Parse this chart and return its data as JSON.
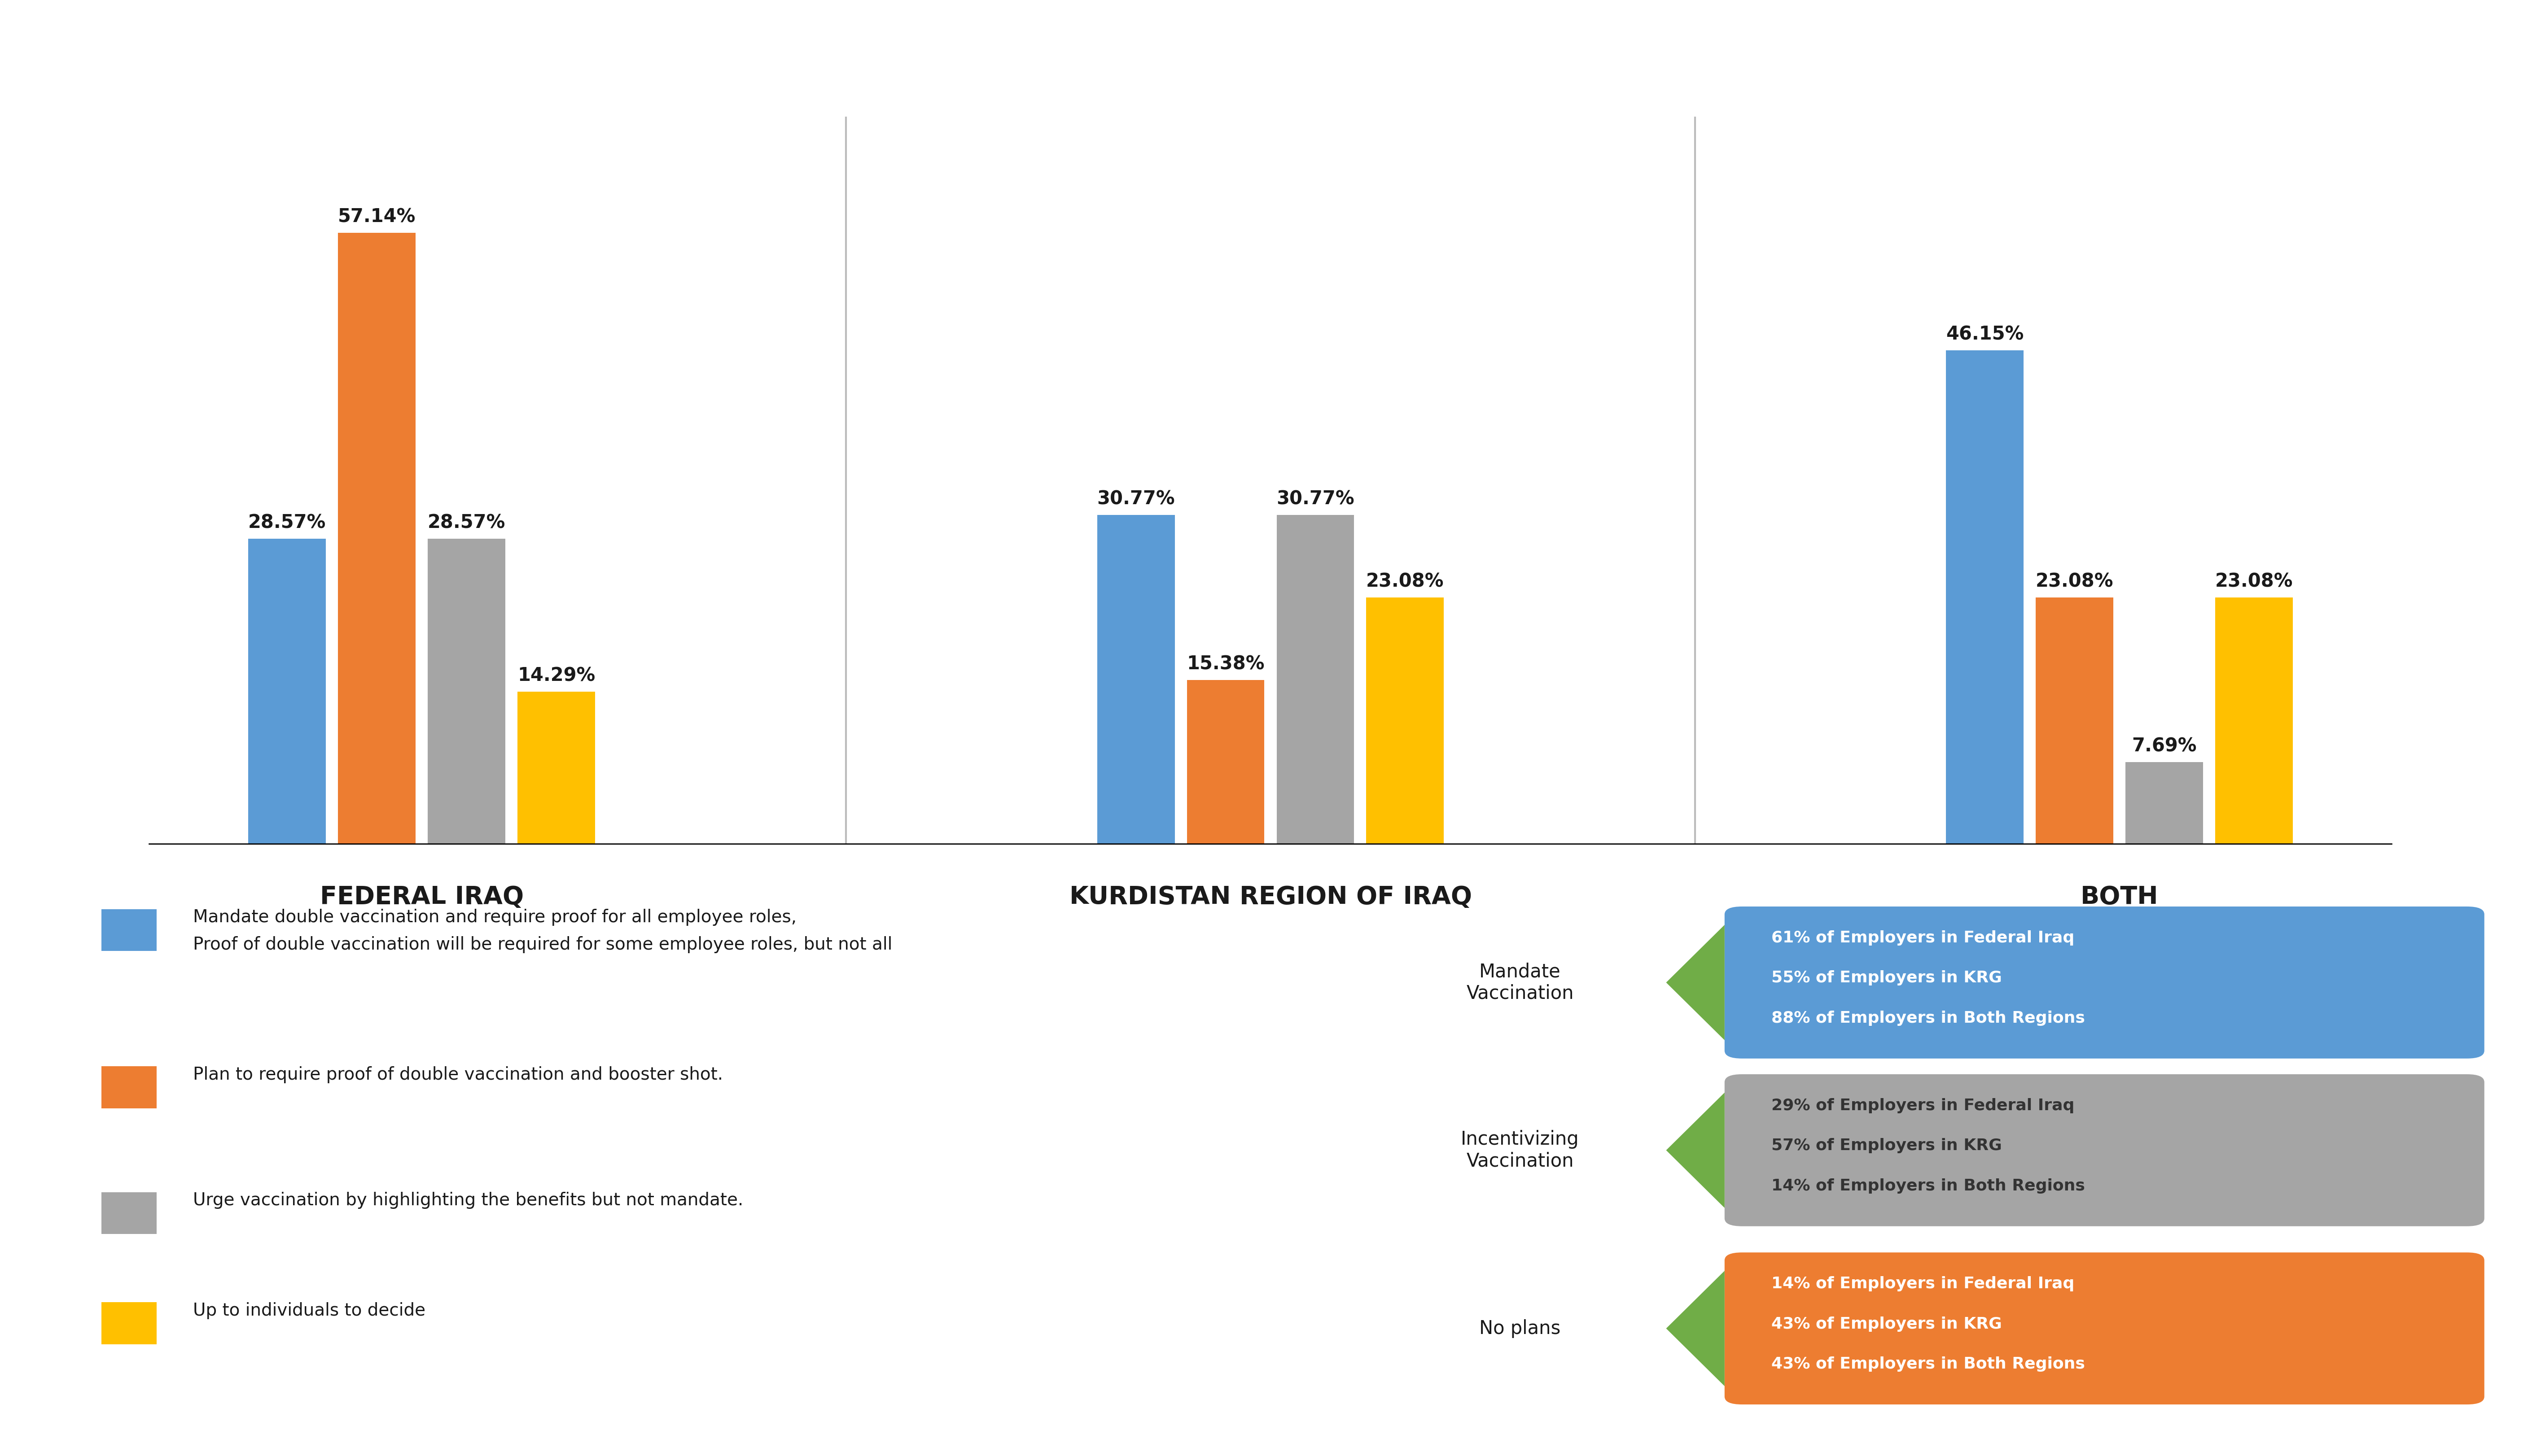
{
  "groups": [
    "FEDERAL IRAQ",
    "KURDISTAN REGION OF IRAQ",
    "BOTH"
  ],
  "colors": [
    "#5B9BD5",
    "#ED7D31",
    "#A5A5A5",
    "#FFC000"
  ],
  "values": {
    "FEDERAL IRAQ": [
      28.57,
      57.14,
      28.57,
      14.29
    ],
    "KURDISTAN REGION OF IRAQ": [
      30.77,
      15.38,
      30.77,
      23.08
    ],
    "BOTH": [
      46.15,
      23.08,
      7.69,
      23.08
    ]
  },
  "bar_labels": {
    "FEDERAL IRAQ": [
      "28.57%",
      "57.14%",
      "28.57%",
      "14.29%"
    ],
    "KURDISTAN REGION OF IRAQ": [
      "30.77%",
      "15.38%",
      "30.77%",
      "23.08%"
    ],
    "BOTH": [
      "46.15%",
      "23.08%",
      "7.69%",
      "23.08%"
    ]
  },
  "legend_items": [
    {
      "color": "#5B9BD5",
      "text1": "Mandate double vaccination and require proof for all employee roles,",
      "text2": "Proof of double vaccination will be required for some employee roles, but not all"
    },
    {
      "color": "#ED7D31",
      "text1": "Plan to require proof of double vaccination and booster shot.",
      "text2": ""
    },
    {
      "color": "#A5A5A5",
      "text1": "Urge vaccination by highlighting the benefits but not mandate.",
      "text2": ""
    },
    {
      "color": "#FFC000",
      "text1": "Up to individuals to decide",
      "text2": ""
    }
  ],
  "annotation_labels": [
    "Mandate\nVaccination",
    "Incentivizing\nVaccination",
    "No plans"
  ],
  "annotation_colors": [
    "#5B9BD5",
    "#A5A5A5",
    "#ED7D31"
  ],
  "annotation_text_colors": [
    "white",
    "#333333",
    "white"
  ],
  "annotation_texts": [
    [
      "61% of Employers in Federal Iraq",
      "55% of Employers in KRG",
      "88% of Employers in Both Regions"
    ],
    [
      "29% of Employers in Federal Iraq",
      "57% of Employers in KRG",
      "14% of Employers in Both Regions"
    ],
    [
      "14% of Employers in Federal Iraq",
      "43% of Employers in KRG",
      "43% of Employers in Both Regions"
    ]
  ],
  "arrow_color": "#70AD47",
  "background_color": "#FFFFFF",
  "separator_color": "#BBBBBB",
  "baseline_color": "#000000",
  "label_color": "#1A1A1A"
}
